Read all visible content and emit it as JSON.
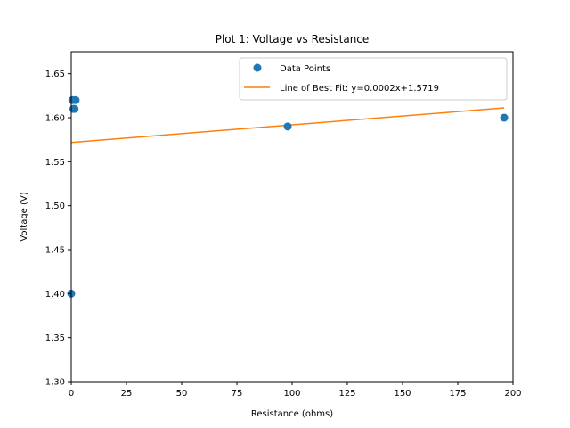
{
  "chart_data": {
    "type": "scatter",
    "title": "Plot 1: Voltage vs Resistance",
    "xlabel": "Resistance (ohms)",
    "ylabel": "Voltage (V)",
    "xlim": [
      0,
      200
    ],
    "ylim": [
      1.3,
      1.675
    ],
    "xticks": [
      0,
      25,
      50,
      75,
      100,
      125,
      150,
      175,
      200
    ],
    "xtick_labels": [
      "0",
      "25",
      "50",
      "75",
      "100",
      "125",
      "150",
      "175",
      "200"
    ],
    "yticks": [
      1.3,
      1.35,
      1.4,
      1.45,
      1.5,
      1.55,
      1.6,
      1.65
    ],
    "ytick_labels": [
      "1.30",
      "1.35",
      "1.40",
      "1.45",
      "1.50",
      "1.55",
      "1.60",
      "1.65"
    ],
    "grid": false,
    "legend_position": "top-right",
    "series": [
      {
        "name": "Data Points",
        "kind": "scatter",
        "color": "#1f77b4",
        "points": [
          {
            "x": 0,
            "y": 1.4
          },
          {
            "x": 0.5,
            "y": 1.62
          },
          {
            "x": 1,
            "y": 1.61
          },
          {
            "x": 1.5,
            "y": 1.61
          },
          {
            "x": 2,
            "y": 1.62
          },
          {
            "x": 98,
            "y": 1.59
          },
          {
            "x": 196,
            "y": 1.6
          }
        ]
      },
      {
        "name": "Line of Best Fit: y=0.0002x+1.5719",
        "kind": "line",
        "color": "#ff7f0e",
        "slope": 0.0002,
        "intercept": 1.5719,
        "x_range": [
          0,
          196
        ]
      }
    ]
  }
}
